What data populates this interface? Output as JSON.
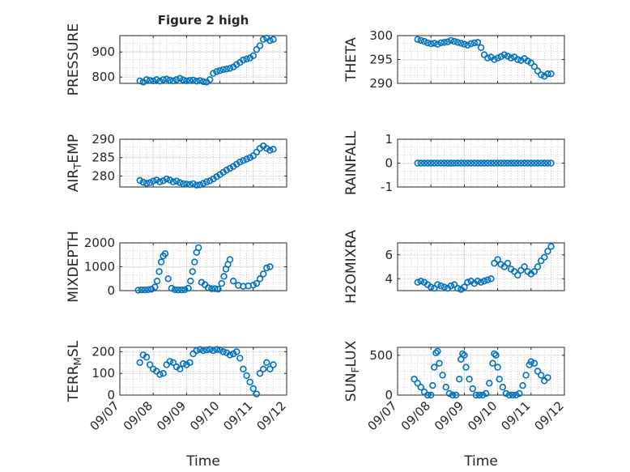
{
  "figure": {
    "title": "Figure 2 high",
    "x_label": "Time",
    "x_ticks": [
      "09/07",
      "09/08",
      "09/09",
      "09/10",
      "09/11",
      "09/12"
    ],
    "marker_color": "#0072BD"
  },
  "chart_data": [
    {
      "type": "scatter",
      "id": "pressure",
      "ylabel": "PRESSURE",
      "title": "Figure 2 high",
      "xlim": [
        0,
        5
      ],
      "ylim": [
        775,
        965
      ],
      "yticks": [
        800,
        900
      ],
      "x": [
        0.6,
        0.7,
        0.8,
        0.9,
        1.0,
        1.1,
        1.2,
        1.3,
        1.4,
        1.5,
        1.6,
        1.7,
        1.8,
        1.9,
        2.0,
        2.1,
        2.2,
        2.3,
        2.4,
        2.5,
        2.6,
        2.7,
        2.8,
        2.9,
        3.0,
        3.1,
        3.2,
        3.3,
        3.4,
        3.5,
        3.6,
        3.7,
        3.8,
        3.9,
        4.0,
        4.1,
        4.2,
        4.3,
        4.4,
        4.5,
        4.6
      ],
      "y": [
        785,
        780,
        790,
        787,
        785,
        790,
        784,
        790,
        792,
        788,
        785,
        790,
        795,
        789,
        785,
        787,
        788,
        784,
        786,
        782,
        780,
        790,
        815,
        822,
        826,
        830,
        832,
        835,
        840,
        850,
        858,
        868,
        872,
        876,
        885,
        910,
        925,
        950,
        955,
        945,
        950
      ]
    },
    {
      "type": "scatter",
      "id": "theta",
      "ylabel": "THETA",
      "xlim": [
        0,
        5
      ],
      "ylim": [
        290,
        300
      ],
      "yticks": [
        290,
        295,
        300
      ],
      "x": [
        0.6,
        0.7,
        0.8,
        0.9,
        1.0,
        1.1,
        1.2,
        1.3,
        1.4,
        1.5,
        1.6,
        1.7,
        1.8,
        1.9,
        2.0,
        2.1,
        2.2,
        2.3,
        2.4,
        2.5,
        2.6,
        2.7,
        2.8,
        2.9,
        3.0,
        3.1,
        3.2,
        3.3,
        3.4,
        3.5,
        3.6,
        3.7,
        3.8,
        3.9,
        4.0,
        4.1,
        4.2,
        4.3,
        4.4,
        4.5,
        4.6
      ],
      "y": [
        299.2,
        299.0,
        298.8,
        298.5,
        298.3,
        298.4,
        298.2,
        298.5,
        298.6,
        298.7,
        299.0,
        298.8,
        298.6,
        298.4,
        298.2,
        298.0,
        298.3,
        298.5,
        298.6,
        297.5,
        296.0,
        295.3,
        295.5,
        295.0,
        295.3,
        295.6,
        296.0,
        295.7,
        295.3,
        295.5,
        295.0,
        294.8,
        295.2,
        294.7,
        294.3,
        293.5,
        292.6,
        291.8,
        291.5,
        292.0,
        292.0
      ]
    },
    {
      "type": "scatter",
      "id": "air_temp",
      "ylabel": "AIR_TEMP",
      "xlim": [
        0,
        5
      ],
      "ylim": [
        277,
        290
      ],
      "yticks": [
        280,
        285,
        290
      ],
      "x": [
        0.6,
        0.7,
        0.8,
        0.9,
        1.0,
        1.1,
        1.2,
        1.3,
        1.4,
        1.5,
        1.6,
        1.7,
        1.8,
        1.9,
        2.0,
        2.1,
        2.2,
        2.3,
        2.4,
        2.5,
        2.6,
        2.7,
        2.8,
        2.9,
        3.0,
        3.1,
        3.2,
        3.3,
        3.4,
        3.5,
        3.6,
        3.7,
        3.8,
        3.9,
        4.0,
        4.1,
        4.2,
        4.3,
        4.4,
        4.5,
        4.6
      ],
      "y": [
        278.8,
        278.3,
        278.0,
        278.2,
        278.6,
        278.9,
        278.4,
        278.7,
        279.2,
        278.9,
        278.4,
        278.6,
        278.2,
        277.9,
        277.8,
        277.7,
        277.9,
        277.5,
        277.6,
        278.0,
        278.4,
        278.7,
        279.2,
        279.8,
        280.4,
        281.0,
        281.6,
        282.1,
        282.6,
        283.2,
        283.8,
        284.2,
        284.6,
        285.0,
        285.5,
        286.5,
        287.5,
        288.2,
        287.5,
        287.0,
        287.3
      ]
    },
    {
      "type": "scatter",
      "id": "rainfall",
      "ylabel": "RAINFALL",
      "xlim": [
        0,
        5
      ],
      "ylim": [
        -1,
        1
      ],
      "yticks": [
        -1,
        0,
        1
      ],
      "x": [
        0.6,
        0.7,
        0.8,
        0.9,
        1.0,
        1.1,
        1.2,
        1.3,
        1.4,
        1.5,
        1.6,
        1.7,
        1.8,
        1.9,
        2.0,
        2.1,
        2.2,
        2.3,
        2.4,
        2.5,
        2.6,
        2.7,
        2.8,
        2.9,
        3.0,
        3.1,
        3.2,
        3.3,
        3.4,
        3.5,
        3.6,
        3.7,
        3.8,
        3.9,
        4.0,
        4.1,
        4.2,
        4.3,
        4.4,
        4.5,
        4.6
      ],
      "y": [
        0,
        0,
        0,
        0,
        0,
        0,
        0,
        0,
        0,
        0,
        0,
        0,
        0,
        0,
        0,
        0,
        0,
        0,
        0,
        0,
        0,
        0,
        0,
        0,
        0,
        0,
        0,
        0,
        0,
        0,
        0,
        0,
        0,
        0,
        0,
        0,
        0,
        0,
        0,
        0,
        0
      ]
    },
    {
      "type": "scatter",
      "id": "mixdepth",
      "ylabel": "MIXDEPTH",
      "xlim": [
        0,
        5
      ],
      "ylim": [
        0,
        2000
      ],
      "yticks": [
        0,
        1000,
        2000
      ],
      "x": [
        0.55,
        0.65,
        0.75,
        0.85,
        0.95,
        1.05,
        1.12,
        1.18,
        1.24,
        1.3,
        1.36,
        1.45,
        1.55,
        1.65,
        1.75,
        1.85,
        1.95,
        2.05,
        2.12,
        2.18,
        2.24,
        2.3,
        2.36,
        2.45,
        2.55,
        2.65,
        2.75,
        2.85,
        2.95,
        3.05,
        3.12,
        3.18,
        3.24,
        3.3,
        3.4,
        3.55,
        3.7,
        3.85,
        4.0,
        4.1,
        4.2,
        4.3,
        4.4,
        4.5
      ],
      "y": [
        20,
        30,
        30,
        40,
        60,
        150,
        400,
        800,
        1200,
        1450,
        1550,
        500,
        100,
        40,
        30,
        30,
        40,
        100,
        400,
        800,
        1200,
        1600,
        1800,
        350,
        250,
        120,
        80,
        80,
        60,
        300,
        600,
        900,
        1100,
        1300,
        400,
        220,
        180,
        200,
        230,
        300,
        500,
        700,
        950,
        1000
      ]
    },
    {
      "type": "scatter",
      "id": "h2omixra",
      "ylabel": "H2OMIXRA",
      "xlim": [
        0,
        5
      ],
      "ylim": [
        3,
        7
      ],
      "yticks": [
        4,
        6
      ],
      "x": [
        0.6,
        0.7,
        0.8,
        0.9,
        1.0,
        1.1,
        1.2,
        1.3,
        1.4,
        1.5,
        1.6,
        1.7,
        1.8,
        1.9,
        2.0,
        2.1,
        2.2,
        2.3,
        2.4,
        2.5,
        2.6,
        2.7,
        2.8,
        2.9,
        3.0,
        3.1,
        3.2,
        3.3,
        3.4,
        3.5,
        3.6,
        3.7,
        3.8,
        3.9,
        4.0,
        4.1,
        4.2,
        4.3,
        4.4,
        4.5,
        4.6
      ],
      "y": [
        3.7,
        3.8,
        3.7,
        3.5,
        3.3,
        3.2,
        3.5,
        3.4,
        3.3,
        3.2,
        3.4,
        3.5,
        3.2,
        3.1,
        3.3,
        3.7,
        3.8,
        3.6,
        3.8,
        3.7,
        3.8,
        3.9,
        4.0,
        5.3,
        5.6,
        5.2,
        5.0,
        5.3,
        4.8,
        4.6,
        4.3,
        4.7,
        5.0,
        4.6,
        4.4,
        4.6,
        5.0,
        5.5,
        5.8,
        6.3,
        6.7
      ]
    },
    {
      "type": "scatter",
      "id": "terr_msl",
      "ylabel": "TERR_MSL",
      "xlim": [
        0,
        5
      ],
      "ylim": [
        0,
        220
      ],
      "yticks": [
        0,
        100,
        200
      ],
      "x": [
        0.6,
        0.7,
        0.8,
        0.9,
        1.0,
        1.1,
        1.2,
        1.3,
        1.4,
        1.5,
        1.6,
        1.7,
        1.8,
        1.9,
        2.0,
        2.1,
        2.2,
        2.3,
        2.4,
        2.5,
        2.6,
        2.7,
        2.8,
        2.9,
        3.0,
        3.1,
        3.2,
        3.3,
        3.4,
        3.5,
        3.6,
        3.7,
        3.8,
        3.9,
        4.0,
        4.1,
        4.2,
        4.3,
        4.4,
        4.5,
        4.6
      ],
      "y": [
        150,
        185,
        175,
        140,
        120,
        110,
        95,
        100,
        140,
        155,
        150,
        130,
        120,
        145,
        140,
        150,
        190,
        205,
        210,
        205,
        208,
        210,
        205,
        210,
        208,
        200,
        195,
        185,
        190,
        200,
        170,
        120,
        90,
        60,
        30,
        5,
        100,
        120,
        150,
        120,
        140
      ]
    },
    {
      "type": "scatter",
      "id": "sun_flux",
      "ylabel": "SUN_FLUX",
      "xlim": [
        0,
        5
      ],
      "ylim": [
        0,
        600
      ],
      "yticks": [
        0,
        500
      ],
      "x": [
        0.5,
        0.6,
        0.7,
        0.8,
        0.9,
        1.0,
        1.05,
        1.1,
        1.15,
        1.2,
        1.25,
        1.35,
        1.45,
        1.55,
        1.65,
        1.75,
        1.85,
        1.9,
        1.95,
        2.0,
        2.05,
        2.15,
        2.25,
        2.35,
        2.45,
        2.55,
        2.65,
        2.75,
        2.85,
        2.9,
        2.95,
        3.0,
        3.05,
        3.15,
        3.25,
        3.35,
        3.45,
        3.55,
        3.65,
        3.75,
        3.85,
        3.95,
        4.0,
        4.1,
        4.2,
        4.3,
        4.4,
        4.5
      ],
      "y": [
        200,
        150,
        100,
        40,
        0,
        0,
        120,
        350,
        530,
        550,
        400,
        250,
        100,
        20,
        0,
        0,
        200,
        450,
        520,
        500,
        350,
        200,
        80,
        0,
        0,
        0,
        20,
        150,
        400,
        520,
        500,
        350,
        200,
        100,
        20,
        0,
        0,
        0,
        20,
        120,
        250,
        380,
        420,
        400,
        300,
        250,
        180,
        220
      ]
    }
  ]
}
